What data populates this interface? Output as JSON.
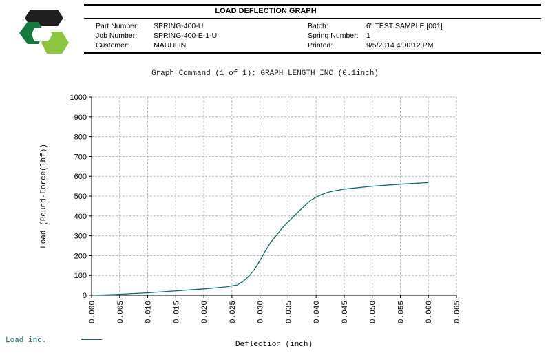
{
  "header": {
    "title": "LOAD DEFLECTION GRAPH",
    "fields_left": [
      {
        "label": "Part Number:",
        "value": "SPRING-400-U"
      },
      {
        "label": "Job Number:",
        "value": "SPRING-400-E-1-U"
      },
      {
        "label": "Customer:",
        "value": "MAUDLIN"
      }
    ],
    "fields_right": [
      {
        "label": "Batch:",
        "value": "6\" TEST SAMPLE [001]"
      },
      {
        "label": "Spring Number:",
        "value": "1"
      },
      {
        "label": "Printed:",
        "value": "9/5/2014 4:00:12 PM"
      }
    ]
  },
  "graph_command": "Graph Command (1 of 1): GRAPH LENGTH INC (0.1inch)",
  "legend": {
    "label": "Load inc."
  },
  "colors": {
    "series": "#0d6b6b",
    "grid": "#b8b8b8",
    "logo_dark": "#1e1e1e",
    "logo_green": "#117a3c",
    "logo_light_green": "#8cc63f"
  },
  "chart_data": {
    "type": "line",
    "xlabel": "Deflection (inch)",
    "ylabel": "Load (Pound-Force(lbf))",
    "xlim": [
      0,
      0.065
    ],
    "ylim": [
      0,
      1000
    ],
    "xticks": [
      "0.000",
      "0.005",
      "0.010",
      "0.015",
      "0.020",
      "0.025",
      "0.030",
      "0.035",
      "0.040",
      "0.045",
      "0.050",
      "0.055",
      "0.060",
      "0.065"
    ],
    "yticks": [
      "0",
      "100",
      "200",
      "300",
      "400",
      "500",
      "600",
      "700",
      "800",
      "900",
      "1000"
    ],
    "grid": true,
    "legend_position": "bottom-left",
    "series": [
      {
        "name": "Load inc.",
        "x": [
          0.0,
          0.005,
          0.01,
          0.015,
          0.02,
          0.024,
          0.026,
          0.027,
          0.028,
          0.029,
          0.03,
          0.031,
          0.032,
          0.033,
          0.034,
          0.035,
          0.036,
          0.037,
          0.038,
          0.039,
          0.04,
          0.041,
          0.042,
          0.043,
          0.045,
          0.05,
          0.055,
          0.06
        ],
        "y": [
          0,
          5,
          12,
          22,
          32,
          42,
          52,
          70,
          95,
          130,
          175,
          225,
          270,
          305,
          340,
          370,
          398,
          425,
          452,
          478,
          495,
          508,
          518,
          525,
          535,
          550,
          560,
          568
        ]
      }
    ]
  }
}
